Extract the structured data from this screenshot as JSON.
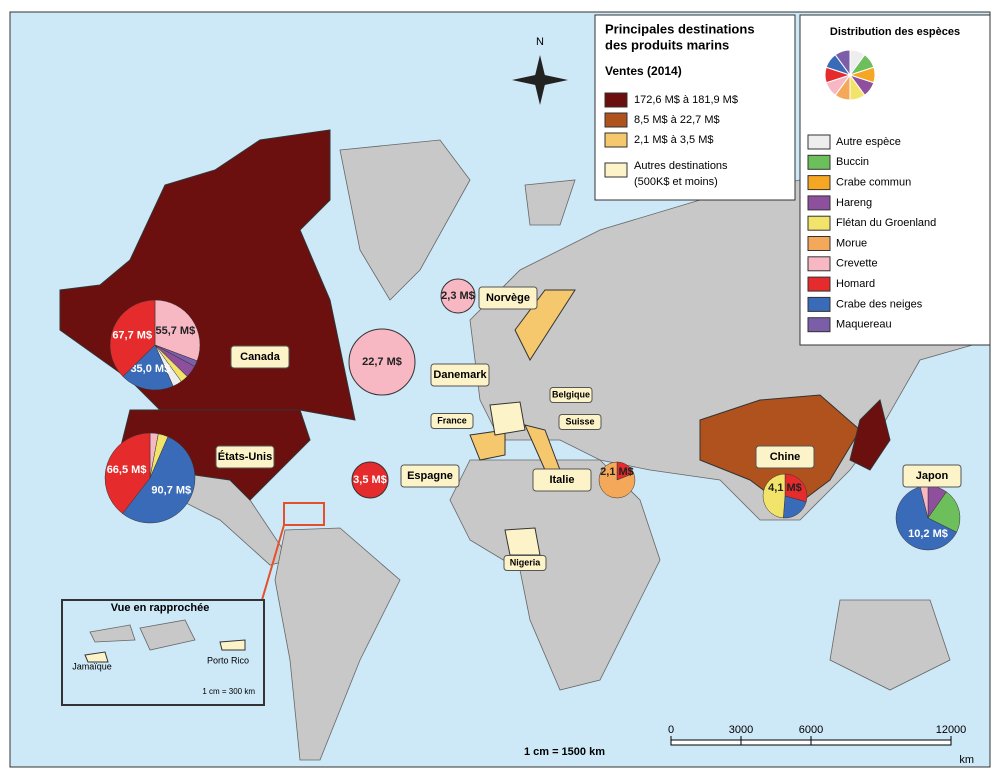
{
  "legend": {
    "title": [
      "Principales destinations",
      "des produits marins"
    ],
    "subtitle": "Ventes (2014)",
    "classes": [
      {
        "label": "172,6 M$ à 181,9 M$",
        "color": "#6b0f0f"
      },
      {
        "label": "8,5 M$ à 22,7 M$",
        "color": "#b0521e"
      },
      {
        "label": "2,1 M$ à 3,5 M$",
        "color": "#f5c86e"
      }
    ],
    "other": {
      "lines": [
        "Autres destinations",
        "(500K$ et moins)"
      ],
      "color": "#fdf3c8"
    }
  },
  "species_legend": {
    "title": "Distribution des espèces",
    "items": [
      {
        "label": "Autre espèce",
        "color": "#eeeeee"
      },
      {
        "label": "Buccin",
        "color": "#6cbf5a"
      },
      {
        "label": "Crabe commun",
        "color": "#f5a623"
      },
      {
        "label": "Hareng",
        "color": "#8e4f9c"
      },
      {
        "label": "Flétan du Groenland",
        "color": "#f2e46a"
      },
      {
        "label": "Morue",
        "color": "#f4a95a"
      },
      {
        "label": "Crevette",
        "color": "#f7b8c4"
      },
      {
        "label": "Homard",
        "color": "#e52b2b"
      },
      {
        "label": "Crabe des neiges",
        "color": "#3a6bb8"
      },
      {
        "label": "Maquereau",
        "color": "#7b5ea7"
      }
    ]
  },
  "countries": [
    "Canada",
    "États-Unis",
    "Norvège",
    "Danemark",
    "Belgique",
    "France",
    "Suisse",
    "Espagne",
    "Italie",
    "Chine",
    "Japon",
    "Nigeria"
  ],
  "pies": [
    {
      "values": [
        55.7,
        4,
        8,
        5,
        6,
        35.0,
        67.7
      ],
      "value_labels": [
        "55,7 M$",
        null,
        null,
        null,
        null,
        "35,0 M$",
        "67,7 M$"
      ],
      "colors": [
        "#f7b8c4",
        "#7b5ea7",
        "#8e4f9c",
        "#f2e46a",
        "#eeeeee",
        "#3a6bb8",
        "#e52b2b"
      ]
    },
    {
      "values": [
        5,
        6,
        90.7,
        66.5
      ],
      "value_labels": [
        null,
        null,
        "90,7 M$",
        "66,5 M$"
      ],
      "colors": [
        "#f7b8c4",
        "#f2e46a",
        "#3a6bb8",
        "#e52b2b"
      ]
    },
    {
      "values": [
        2.3
      ],
      "value_labels": [
        "2,3 M$"
      ],
      "colors": [
        "#f7b8c4"
      ]
    },
    {
      "values": [
        22.7
      ],
      "value_labels": [
        "22,7 M$"
      ],
      "colors": [
        "#f7b8c4"
      ]
    },
    {
      "values": [
        3.5
      ],
      "value_labels": [
        "3,5 M$"
      ],
      "colors": [
        "#e52b2b"
      ]
    },
    {
      "total": 2.1,
      "label": "2,1 M$",
      "values": [
        0.4,
        1.7
      ],
      "colors": [
        "#e52b2b",
        "#f4a95a"
      ]
    },
    {
      "total": 4.1,
      "label": "4,1 M$",
      "values": [
        1.2,
        0.9,
        2.0
      ],
      "colors": [
        "#e52b2b",
        "#3a6bb8",
        "#f2e46a"
      ]
    },
    {
      "total": 10.2,
      "label": "10,2 M$",
      "values": [
        1.0,
        2.3,
        6.5,
        0.4
      ],
      "colors": [
        "#8e4f9c",
        "#6cbf5a",
        "#3a6bb8",
        "#f7b8c4"
      ]
    }
  ],
  "compass": "N",
  "scale": {
    "text": "1 cm = 1500 km",
    "ticks": [
      0,
      3000,
      6000,
      12000
    ],
    "unit": "km"
  },
  "inset": {
    "title": "Vue en rapprochée",
    "labels": [
      "Jamaïque",
      "Porto Rico"
    ],
    "scale": "1 cm = 300 km"
  }
}
